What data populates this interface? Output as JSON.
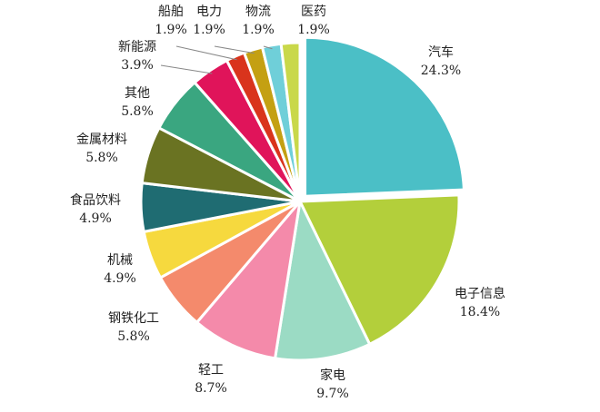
{
  "chart_data": {
    "type": "pie",
    "title": "",
    "slices": [
      {
        "label": "汽车",
        "value": 24.3,
        "value_label": "24.3%",
        "color": "#4bbfc6"
      },
      {
        "label": "电子信息",
        "value": 18.4,
        "value_label": "18.4%",
        "color": "#b3cf3b"
      },
      {
        "label": "家电",
        "value": 9.7,
        "value_label": "9.7%",
        "color": "#9bdbc4"
      },
      {
        "label": "轻工",
        "value": 8.7,
        "value_label": "8.7%",
        "color": "#f48aaa"
      },
      {
        "label": "钢铁化工",
        "value": 5.8,
        "value_label": "5.8%",
        "color": "#f48a6c"
      },
      {
        "label": "机械",
        "value": 4.9,
        "value_label": "4.9%",
        "color": "#f6d93e"
      },
      {
        "label": "食品饮料",
        "value": 4.9,
        "value_label": "4.9%",
        "color": "#1f6c72"
      },
      {
        "label": "金属材料",
        "value": 5.8,
        "value_label": "5.8%",
        "color": "#6a7322"
      },
      {
        "label": "其他",
        "value": 5.8,
        "value_label": "5.8%",
        "color": "#3aa680"
      },
      {
        "label": "新能源",
        "value": 3.9,
        "value_label": "3.9%",
        "color": "#e0145a"
      },
      {
        "label": "船舶",
        "value": 1.9,
        "value_label": "1.9%",
        "color": "#d9341c"
      },
      {
        "label": "电力",
        "value": 1.9,
        "value_label": "1.9%",
        "color": "#c4a012"
      },
      {
        "label": "物流",
        "value": 1.9,
        "value_label": "1.9%",
        "color": "#6fcfd9"
      },
      {
        "label": "医药",
        "value": 1.9,
        "value_label": "1.9%",
        "color": "#c9d84a"
      }
    ],
    "legend": "none"
  }
}
